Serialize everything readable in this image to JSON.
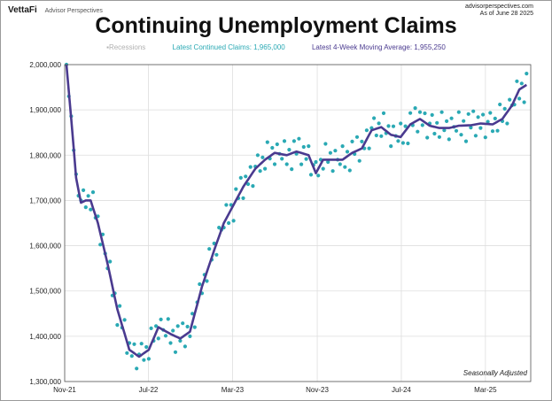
{
  "brand": {
    "name": "VettaFi",
    "sub": "Advisor Perspectives"
  },
  "site": {
    "url": "advisorperspectives.com",
    "date": "As of June 28 2025"
  },
  "chart_data": {
    "type": "line",
    "title": "Continuing Unemployment Claims",
    "legend": {
      "recessions": "Recessions",
      "latest_claims": "Latest Continued Claims: 1,965,000",
      "latest_ma": "Latest 4-Week Moving Average: 1,955,250",
      "placement": "top-center"
    },
    "note": "Seasonally Adjusted",
    "ylim": [
      1300000,
      2000000
    ],
    "y_ticks": [
      1300000,
      1400000,
      1500000,
      1600000,
      1700000,
      1800000,
      1900000,
      2000000
    ],
    "y_tick_labels": [
      "1,300,000",
      "1,400,000",
      "1,500,000",
      "1,600,000",
      "1,700,000",
      "1,800,000",
      "1,900,000",
      "2,000,000"
    ],
    "x_tick_labels": [
      "Nov-21",
      "Jul-22",
      "Mar-23",
      "Nov-23",
      "Jul-24",
      "Mar-25"
    ],
    "grid": true,
    "colors": {
      "claims": "#2aa9b4",
      "moving_average": "#4a3a8f",
      "recessions": "#b0b0b0",
      "grid": "#dedede"
    },
    "anchors": [
      [
        "2021-11-06",
        2000000
      ],
      [
        "2021-11-20",
        1880000
      ],
      [
        "2021-12-04",
        1750000
      ],
      [
        "2021-12-18",
        1695000
      ],
      [
        "2022-01-01",
        1700000
      ],
      [
        "2022-01-15",
        1700000
      ],
      [
        "2022-02-05",
        1650000
      ],
      [
        "2022-03-05",
        1560000
      ],
      [
        "2022-04-02",
        1460000
      ],
      [
        "2022-05-07",
        1370000
      ],
      [
        "2022-06-04",
        1355000
      ],
      [
        "2022-07-02",
        1370000
      ],
      [
        "2022-07-30",
        1420000
      ],
      [
        "2022-09-03",
        1405000
      ],
      [
        "2022-10-01",
        1395000
      ],
      [
        "2022-10-29",
        1410000
      ],
      [
        "2022-12-03",
        1510000
      ],
      [
        "2023-01-07",
        1590000
      ],
      [
        "2023-02-04",
        1650000
      ],
      [
        "2023-03-04",
        1690000
      ],
      [
        "2023-04-01",
        1730000
      ],
      [
        "2023-05-06",
        1770000
      ],
      [
        "2023-06-03",
        1790000
      ],
      [
        "2023-07-01",
        1805000
      ],
      [
        "2023-08-05",
        1800000
      ],
      [
        "2023-09-02",
        1808000
      ],
      [
        "2023-10-07",
        1800000
      ],
      [
        "2023-10-28",
        1760000
      ],
      [
        "2023-11-18",
        1790000
      ],
      [
        "2023-12-16",
        1790000
      ],
      [
        "2024-01-13",
        1790000
      ],
      [
        "2024-02-10",
        1805000
      ],
      [
        "2024-03-09",
        1815000
      ],
      [
        "2024-04-06",
        1855000
      ],
      [
        "2024-05-04",
        1862000
      ],
      [
        "2024-06-01",
        1845000
      ],
      [
        "2024-06-29",
        1840000
      ],
      [
        "2024-07-27",
        1868000
      ],
      [
        "2024-08-24",
        1880000
      ],
      [
        "2024-09-21",
        1865000
      ],
      [
        "2024-10-19",
        1860000
      ],
      [
        "2024-11-16",
        1860000
      ],
      [
        "2024-12-14",
        1865000
      ],
      [
        "2025-01-18",
        1866000
      ],
      [
        "2025-02-15",
        1870000
      ],
      [
        "2025-03-22",
        1868000
      ],
      [
        "2025-04-19",
        1880000
      ],
      [
        "2025-05-17",
        1910000
      ],
      [
        "2025-06-07",
        1945000
      ],
      [
        "2025-06-28",
        1955250
      ]
    ],
    "scatter_deviation": [
      30000,
      -25000,
      15000,
      -10000,
      20000,
      -30000,
      5000,
      25000,
      -15000,
      10000,
      -20000,
      35000,
      -5000,
      15000,
      -25000,
      20000,
      0,
      -10000,
      30000,
      -20000,
      10000,
      -35000,
      25000,
      -5000
    ]
  }
}
